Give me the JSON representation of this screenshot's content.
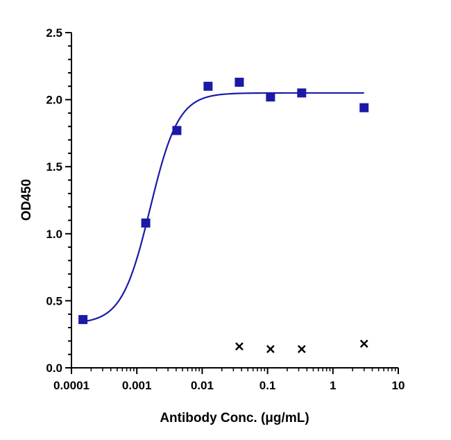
{
  "chart_data": {
    "type": "scatter",
    "xlabel": "Antibody Conc. (μg/mL)",
    "ylabel": "OD450",
    "x_scale": "log",
    "xlim": [
      0.0001,
      10
    ],
    "ylim": [
      0,
      2.5
    ],
    "x_tick_labels": [
      "0.0001",
      "0.001",
      "0.01",
      "0.1",
      "1",
      "10"
    ],
    "x_tick_values": [
      0.0001,
      0.001,
      0.01,
      0.1,
      1,
      10
    ],
    "y_tick_labels": [
      "0.0",
      "0.5",
      "1.0",
      "1.5",
      "2.0",
      "2.5"
    ],
    "y_tick_values": [
      0,
      0.5,
      1.0,
      1.5,
      2.0,
      2.5
    ],
    "grid": false,
    "series": [
      {
        "marker": "square",
        "color": "#1a1aa6",
        "points": [
          {
            "x": 0.00015,
            "y": 0.36
          },
          {
            "x": 0.00137,
            "y": 1.08
          },
          {
            "x": 0.0041,
            "y": 1.77
          },
          {
            "x": 0.0123,
            "y": 2.1
          },
          {
            "x": 0.037,
            "y": 2.13
          },
          {
            "x": 0.111,
            "y": 2.02
          },
          {
            "x": 0.333,
            "y": 2.05
          },
          {
            "x": 3.0,
            "y": 1.94
          }
        ],
        "fit_curve": {
          "model": "4PL",
          "bottom": 0.33,
          "top": 2.05,
          "ec50": 0.0016,
          "hill": 2.0,
          "x_range": [
            0.00015,
            3.0
          ]
        }
      },
      {
        "marker": "x",
        "color": "#000000",
        "points": [
          {
            "x": 0.037,
            "y": 0.16
          },
          {
            "x": 0.111,
            "y": 0.14
          },
          {
            "x": 0.333,
            "y": 0.14
          },
          {
            "x": 3.0,
            "y": 0.18
          }
        ]
      }
    ]
  }
}
